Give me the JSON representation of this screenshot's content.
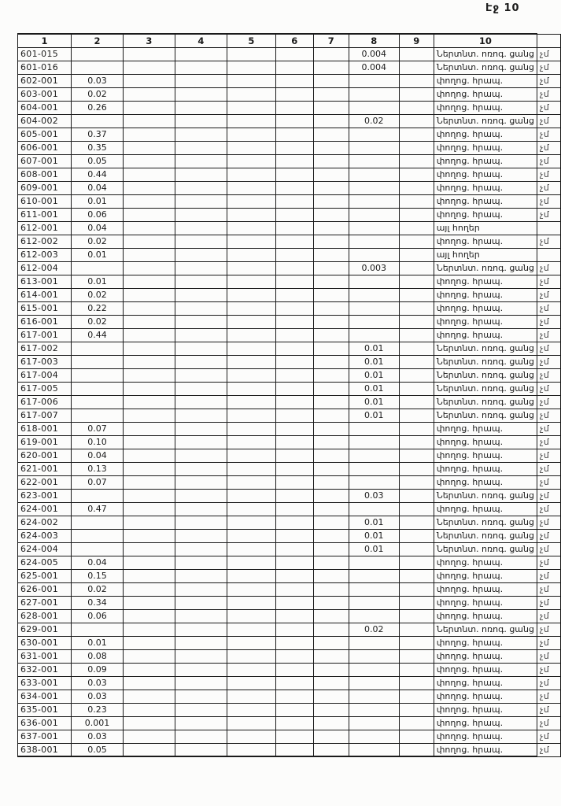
{
  "page": {
    "header_label": "Էջ 10"
  },
  "table": {
    "column_headers": [
      "1",
      "2",
      "3",
      "4",
      "5",
      "6",
      "7",
      "8",
      "9",
      "10"
    ],
    "margin_note": "չմ",
    "land_type_irrigation": "Ներտնտ. ոռոգ. ցանց",
    "land_type_street": "փողոց. հրապ.",
    "land_type_other": "այլ հողեր",
    "rows": [
      {
        "code": "601-015",
        "v2": "",
        "v8": "0.004",
        "label": "Ներտնտ. ոռոգ. ցանց",
        "note": "չմ"
      },
      {
        "code": "601-016",
        "v2": "",
        "v8": "0.004",
        "label": "Ներտնտ. ոռոգ. ցանց",
        "note": "չմ"
      },
      {
        "code": "602-001",
        "v2": "0.03",
        "v8": "",
        "label": "փողոց. հրապ.",
        "note": "չմ"
      },
      {
        "code": "603-001",
        "v2": "0.02",
        "v8": "",
        "label": "փողոց. հրապ.",
        "note": "չմ"
      },
      {
        "code": "604-001",
        "v2": "0.26",
        "v8": "",
        "label": "փողոց. հրապ.",
        "note": "չմ"
      },
      {
        "code": "604-002",
        "v2": "",
        "v8": "0.02",
        "label": "Ներտնտ. ոռոգ. ցանց",
        "note": "չմ"
      },
      {
        "code": "605-001",
        "v2": "0.37",
        "v8": "",
        "label": "փողոց. հրապ.",
        "note": "չմ"
      },
      {
        "code": "606-001",
        "v2": "0.35",
        "v8": "",
        "label": "փողոց. հրապ.",
        "note": "չմ"
      },
      {
        "code": "607-001",
        "v2": "0.05",
        "v8": "",
        "label": "փողոց. հրապ.",
        "note": "չմ"
      },
      {
        "code": "608-001",
        "v2": "0.44",
        "v8": "",
        "label": "փողոց. հրապ.",
        "note": "չմ"
      },
      {
        "code": "609-001",
        "v2": "0.04",
        "v8": "",
        "label": "փողոց. հրապ.",
        "note": "չմ"
      },
      {
        "code": "610-001",
        "v2": "0.01",
        "v8": "",
        "label": "փողոց. հրապ.",
        "note": "չմ"
      },
      {
        "code": "611-001",
        "v2": "0.06",
        "v8": "",
        "label": "փողոց. հրապ.",
        "note": "չմ"
      },
      {
        "code": "612-001",
        "v2": "0.04",
        "v8": "",
        "label": "այլ հողեր",
        "note": ""
      },
      {
        "code": "612-002",
        "v2": "0.02",
        "v8": "",
        "label": "փողոց. հրապ.",
        "note": "չմ"
      },
      {
        "code": "612-003",
        "v2": "0.01",
        "v8": "",
        "label": "այլ հողեր",
        "note": ""
      },
      {
        "code": "612-004",
        "v2": "",
        "v8": "0.003",
        "label": "Ներտնտ. ոռոգ. ցանց",
        "note": "չմ"
      },
      {
        "code": "613-001",
        "v2": "0.01",
        "v8": "",
        "label": "փողոց. հրապ.",
        "note": "չմ"
      },
      {
        "code": "614-001",
        "v2": "0.02",
        "v8": "",
        "label": "փողոց. հրապ.",
        "note": "չմ"
      },
      {
        "code": "615-001",
        "v2": "0.22",
        "v8": "",
        "label": "փողոց. հրապ.",
        "note": "չմ"
      },
      {
        "code": "616-001",
        "v2": "0.02",
        "v8": "",
        "label": "փողոց. հրապ.",
        "note": "չմ"
      },
      {
        "code": "617-001",
        "v2": "0.44",
        "v8": "",
        "label": "փողոց. հրապ.",
        "note": "չմ"
      },
      {
        "code": "617-002",
        "v2": "",
        "v8": "0.01",
        "label": "Ներտնտ. ոռոգ. ցանց",
        "note": "չմ"
      },
      {
        "code": "617-003",
        "v2": "",
        "v8": "0.01",
        "label": "Ներտնտ. ոռոգ. ցանց",
        "note": "չմ"
      },
      {
        "code": "617-004",
        "v2": "",
        "v8": "0.01",
        "label": "Ներտնտ. ոռոգ. ցանց",
        "note": "չմ"
      },
      {
        "code": "617-005",
        "v2": "",
        "v8": "0.01",
        "label": "Ներտնտ. ոռոգ. ցանց",
        "note": "չմ"
      },
      {
        "code": "617-006",
        "v2": "",
        "v8": "0.01",
        "label": "Ներտնտ. ոռոգ. ցանց",
        "note": "չմ"
      },
      {
        "code": "617-007",
        "v2": "",
        "v8": "0.01",
        "label": "Ներտնտ. ոռոգ. ցանց",
        "note": "չմ"
      },
      {
        "code": "618-001",
        "v2": "0.07",
        "v8": "",
        "label": "փողոց. հրապ.",
        "note": "չմ"
      },
      {
        "code": "619-001",
        "v2": "0.10",
        "v8": "",
        "label": "փողոց. հրապ.",
        "note": "չմ"
      },
      {
        "code": "620-001",
        "v2": "0.04",
        "v8": "",
        "label": "փողոց. հրապ.",
        "note": "չմ"
      },
      {
        "code": "621-001",
        "v2": "0.13",
        "v8": "",
        "label": "փողոց. հրապ.",
        "note": "չմ"
      },
      {
        "code": "622-001",
        "v2": "0.07",
        "v8": "",
        "label": "փողոց. հրապ.",
        "note": "չմ"
      },
      {
        "code": "623-001",
        "v2": "",
        "v8": "0.03",
        "label": "Ներտնտ. ոռոգ. ցանց",
        "note": "չմ"
      },
      {
        "code": "624-001",
        "v2": "0.47",
        "v8": "",
        "label": "փողոց. հրապ.",
        "note": "չմ"
      },
      {
        "code": "624-002",
        "v2": "",
        "v8": "0.01",
        "label": "Ներտնտ. ոռոգ. ցանց",
        "note": "չմ"
      },
      {
        "code": "624-003",
        "v2": "",
        "v8": "0.01",
        "label": "Ներտնտ. ոռոգ. ցանց",
        "note": "չմ"
      },
      {
        "code": "624-004",
        "v2": "",
        "v8": "0.01",
        "label": "Ներտնտ. ոռոգ. ցանց",
        "note": "չմ"
      },
      {
        "code": "624-005",
        "v2": "0.04",
        "v8": "",
        "label": "փողոց. հրապ.",
        "note": "չմ"
      },
      {
        "code": "625-001",
        "v2": "0.15",
        "v8": "",
        "label": "փողոց. հրապ.",
        "note": "չմ"
      },
      {
        "code": "626-001",
        "v2": "0.02",
        "v8": "",
        "label": "փողոց. հրապ.",
        "note": "չմ"
      },
      {
        "code": "627-001",
        "v2": "0.34",
        "v8": "",
        "label": "փողոց. հրապ.",
        "note": "չմ"
      },
      {
        "code": "628-001",
        "v2": "0.06",
        "v8": "",
        "label": "փողոց. հրապ.",
        "note": "չմ"
      },
      {
        "code": "629-001",
        "v2": "",
        "v8": "0.02",
        "label": "Ներտնտ. ոռոգ. ցանց",
        "note": "չմ"
      },
      {
        "code": "630-001",
        "v2": "0.01",
        "v8": "",
        "label": "փողոց. հրապ.",
        "note": "չմ"
      },
      {
        "code": "631-001",
        "v2": "0.08",
        "v8": "",
        "label": "փողոց. հրապ.",
        "note": "չմ"
      },
      {
        "code": "632-001",
        "v2": "0.09",
        "v8": "",
        "label": "փողոց. հրապ.",
        "note": "չմ"
      },
      {
        "code": "633-001",
        "v2": "0.03",
        "v8": "",
        "label": "փողոց. հրապ.",
        "note": "չմ"
      },
      {
        "code": "634-001",
        "v2": "0.03",
        "v8": "",
        "label": "փողոց. հրապ.",
        "note": "չմ"
      },
      {
        "code": "635-001",
        "v2": "0.23",
        "v8": "",
        "label": "փողոց. հրապ.",
        "note": "չմ"
      },
      {
        "code": "636-001",
        "v2": "0.001",
        "v8": "",
        "label": "փողոց. հրապ.",
        "note": "չմ"
      },
      {
        "code": "637-001",
        "v2": "0.03",
        "v8": "",
        "label": "փողոց. հրապ.",
        "note": "չմ"
      },
      {
        "code": "638-001",
        "v2": "0.05",
        "v8": "",
        "label": "փողոց. հրապ.",
        "note": "չմ"
      }
    ]
  },
  "colors": {
    "ink": "#1a1a1a",
    "paper": "#fcfcfb",
    "note_ink": "#454545"
  }
}
